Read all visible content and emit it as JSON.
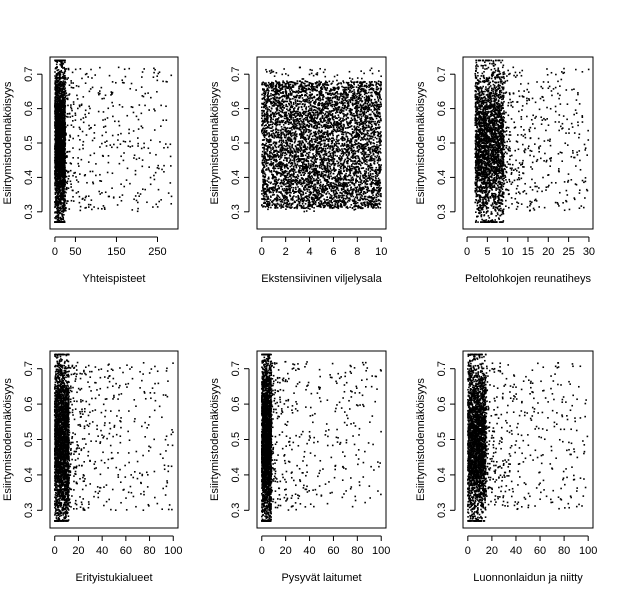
{
  "chart_data": [
    {
      "type": "scatter",
      "xlabel": "Yhteispisteet",
      "ylabel": "Esiirtymistodennäköisyys",
      "xticks": [
        0,
        50,
        150,
        250
      ],
      "yticks": [
        0.3,
        0.4,
        0.5,
        0.6,
        0.7
      ],
      "xlim": [
        -12,
        300
      ],
      "ylim": [
        0.25,
        0.75
      ],
      "grid": false,
      "legend": "none",
      "point_color": "#000000",
      "distribution": {
        "dense_x": [
          0,
          25
        ],
        "dense_y": [
          0.27,
          0.73
        ],
        "sparse_x": [
          25,
          285
        ]
      }
    },
    {
      "type": "scatter",
      "xlabel": "Ekstensiivinen viljelysala",
      "ylabel": "Esiirtymistodennäköisyys",
      "xticks": [
        0,
        2,
        4,
        6,
        8,
        10
      ],
      "yticks": [
        0.3,
        0.4,
        0.5,
        0.6,
        0.7
      ],
      "xlim": [
        -0.4,
        10.4
      ],
      "ylim": [
        0.25,
        0.75
      ],
      "grid": false,
      "legend": "none",
      "point_color": "#000000",
      "distribution": {
        "dense_x": [
          0,
          10
        ],
        "dense_y": [
          0.31,
          0.68
        ],
        "sparse_x": [
          0,
          10
        ]
      }
    },
    {
      "type": "scatter",
      "xlabel": "Peltolohkojen reunatiheys",
      "ylabel": "Esiirtymistodennäköisyys",
      "xticks": [
        0,
        5,
        10,
        15,
        20,
        25,
        30
      ],
      "yticks": [
        0.3,
        0.4,
        0.5,
        0.6,
        0.7
      ],
      "xlim": [
        -1,
        31
      ],
      "ylim": [
        0.25,
        0.75
      ],
      "grid": false,
      "legend": "none",
      "point_color": "#000000",
      "distribution": {
        "dense_x": [
          2,
          9
        ],
        "dense_y": [
          0.27,
          0.73
        ],
        "sparse_x": [
          9,
          30
        ]
      }
    },
    {
      "type": "scatter",
      "xlabel": "Erityistukialueet",
      "ylabel": "Esiirtymistodennäköisyys",
      "xticks": [
        0,
        20,
        40,
        60,
        80,
        100
      ],
      "yticks": [
        0.3,
        0.4,
        0.5,
        0.6,
        0.7
      ],
      "xlim": [
        -4,
        104
      ],
      "ylim": [
        0.25,
        0.75
      ],
      "grid": false,
      "legend": "none",
      "point_color": "#000000",
      "distribution": {
        "dense_x": [
          0,
          12
        ],
        "dense_y": [
          0.27,
          0.73
        ],
        "sparse_x": [
          12,
          100
        ]
      }
    },
    {
      "type": "scatter",
      "xlabel": "Pysyvät laitumet",
      "ylabel": "Esiirtymistodennäköisyys",
      "xticks": [
        0,
        20,
        40,
        60,
        80,
        100
      ],
      "yticks": [
        0.3,
        0.4,
        0.5,
        0.6,
        0.7
      ],
      "xlim": [
        -4,
        104
      ],
      "ylim": [
        0.25,
        0.75
      ],
      "grid": false,
      "legend": "none",
      "point_color": "#000000",
      "distribution": {
        "dense_x": [
          0,
          8
        ],
        "dense_y": [
          0.27,
          0.73
        ],
        "sparse_x": [
          8,
          100
        ]
      }
    },
    {
      "type": "scatter",
      "xlabel": "Luonnonlaidun ja niitty",
      "ylabel": "Esiirtymistodennäköisyys",
      "xticks": [
        0,
        20,
        40,
        60,
        80,
        100
      ],
      "yticks": [
        0.3,
        0.4,
        0.5,
        0.6,
        0.7
      ],
      "xlim": [
        -4,
        104
      ],
      "ylim": [
        0.25,
        0.75
      ],
      "grid": false,
      "legend": "none",
      "point_color": "#000000",
      "distribution": {
        "dense_x": [
          0,
          15
        ],
        "dense_y": [
          0.27,
          0.73
        ],
        "sparse_x": [
          15,
          100
        ]
      }
    }
  ]
}
